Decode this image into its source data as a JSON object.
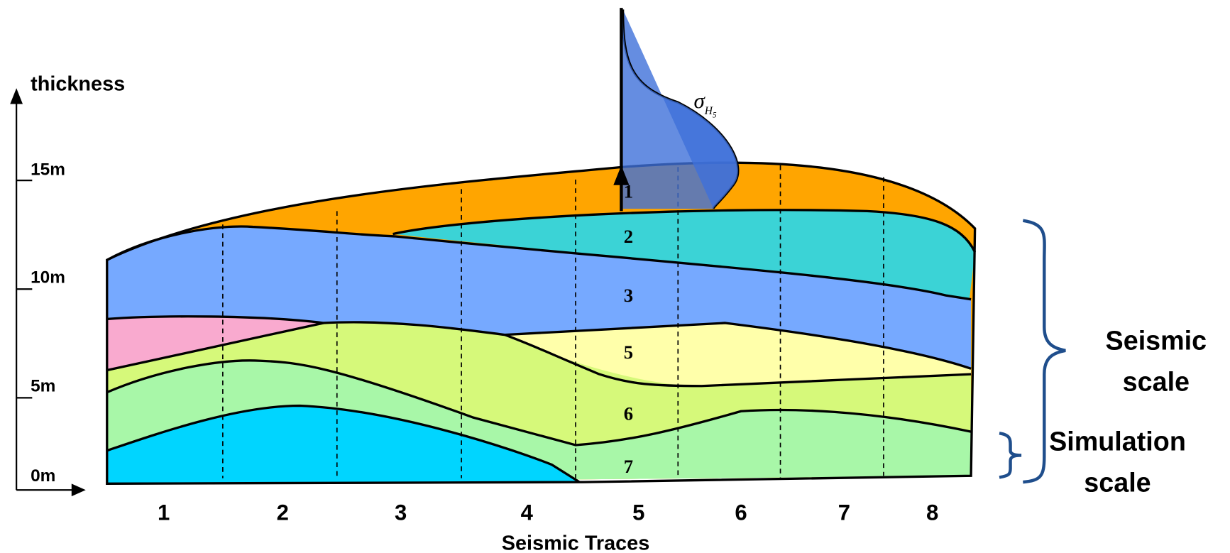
{
  "y_axis": {
    "label": "thickness",
    "ticks": [
      "15m",
      "10m",
      "5m",
      "0m"
    ]
  },
  "x_axis": {
    "label": "Seismic Traces",
    "ticks": [
      "1",
      "2",
      "3",
      "4",
      "5",
      "6",
      "7",
      "8"
    ]
  },
  "layers": [
    "1",
    "2",
    "3",
    "5",
    "6",
    "7"
  ],
  "sigma_label": {
    "symbol": "σ",
    "subscript": "H",
    "sub_subscript": "5"
  },
  "scales": [
    {
      "lines": [
        "Seismic",
        "scale"
      ]
    },
    {
      "lines": [
        "Simulation",
        "scale"
      ]
    }
  ]
}
